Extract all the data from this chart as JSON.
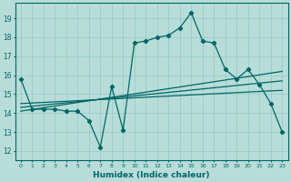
{
  "xlabel": "Humidex (Indice chaleur)",
  "background_color": "#b8ddd8",
  "grid_color": "#99cccc",
  "line_color": "#006666",
  "xlim": [
    -0.5,
    23.5
  ],
  "ylim": [
    11.5,
    19.8
  ],
  "xticks": [
    0,
    1,
    2,
    3,
    4,
    5,
    6,
    7,
    8,
    9,
    10,
    11,
    12,
    13,
    14,
    15,
    16,
    17,
    18,
    19,
    20,
    21,
    22,
    23
  ],
  "yticks": [
    12,
    13,
    14,
    15,
    16,
    17,
    18,
    19
  ],
  "line1_x": [
    0,
    1,
    2,
    3,
    4,
    5,
    6,
    7,
    8,
    9,
    10,
    11,
    12,
    13,
    14,
    15,
    16,
    17,
    18,
    19,
    20,
    21,
    22,
    23
  ],
  "line1_y": [
    15.8,
    14.2,
    14.2,
    14.2,
    14.1,
    14.1,
    13.6,
    12.2,
    15.4,
    13.1,
    17.7,
    17.8,
    18.0,
    18.1,
    18.5,
    19.3,
    17.8,
    17.7,
    16.3,
    15.8,
    16.3,
    15.5,
    14.5,
    13.0
  ],
  "line2_x": [
    0,
    23
  ],
  "line2_y": [
    14.1,
    16.2
  ],
  "line3_x": [
    0,
    23
  ],
  "line3_y": [
    14.3,
    15.7
  ],
  "line4_x": [
    0,
    23
  ],
  "line4_y": [
    14.5,
    15.2
  ]
}
